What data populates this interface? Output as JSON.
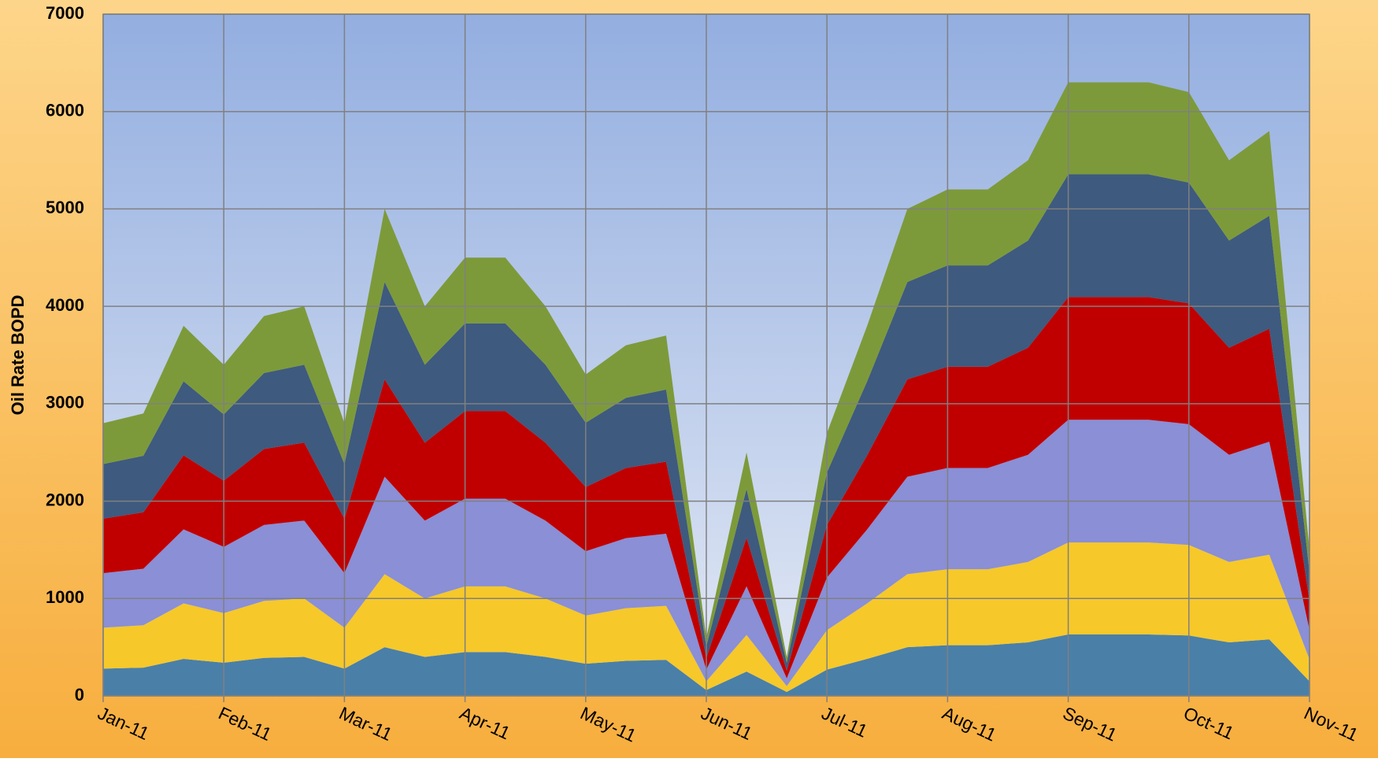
{
  "chart_data": {
    "type": "stacked_area",
    "y_label": "Oil Rate BOPD",
    "categories": [
      "Jan-11",
      null,
      null,
      "Feb-11",
      null,
      null,
      "Mar-11",
      null,
      null,
      "Apr-11",
      null,
      null,
      "May-11",
      null,
      null,
      "Jun-11",
      null,
      null,
      "Jul-11",
      null,
      null,
      "Aug-11",
      null,
      null,
      "Sep-11",
      null,
      null,
      "Oct-11",
      null,
      null,
      "Nov-11"
    ],
    "series": [
      {
        "color": "#4a7fa8",
        "values": [
          280,
          290,
          380,
          340,
          390,
          400,
          280,
          500,
          400,
          450,
          450,
          400,
          330,
          360,
          370,
          60,
          250,
          40,
          270,
          380,
          500,
          520,
          520,
          550,
          630,
          630,
          630,
          620,
          550,
          580,
          150
        ]
      },
      {
        "color": "#f6c82a",
        "values": [
          420,
          435,
          570,
          510,
          585,
          600,
          420,
          750,
          600,
          675,
          675,
          600,
          495,
          540,
          555,
          90,
          375,
          60,
          405,
          570,
          750,
          780,
          780,
          825,
          945,
          945,
          945,
          930,
          825,
          870,
          225
        ]
      },
      {
        "color": "#8a8fd6",
        "values": [
          560,
          580,
          760,
          680,
          780,
          800,
          560,
          1000,
          800,
          900,
          900,
          800,
          660,
          720,
          740,
          120,
          500,
          80,
          540,
          760,
          1000,
          1040,
          1040,
          1100,
          1260,
          1260,
          1260,
          1240,
          1100,
          1160,
          300
        ]
      },
      {
        "color": "#c00000",
        "values": [
          560,
          580,
          760,
          680,
          780,
          800,
          560,
          1000,
          800,
          900,
          900,
          800,
          660,
          720,
          740,
          120,
          500,
          80,
          540,
          760,
          1000,
          1040,
          1040,
          1100,
          1260,
          1260,
          1260,
          1240,
          1100,
          1160,
          300
        ]
      },
      {
        "color": "#3e5a7e",
        "values": [
          560,
          580,
          760,
          680,
          780,
          800,
          560,
          1000,
          800,
          900,
          900,
          800,
          660,
          720,
          740,
          120,
          500,
          80,
          540,
          760,
          1000,
          1040,
          1040,
          1100,
          1260,
          1260,
          1260,
          1240,
          1100,
          1160,
          300
        ]
      },
      {
        "color": "#7d9a3a",
        "values": [
          420,
          435,
          570,
          510,
          585,
          600,
          420,
          750,
          600,
          675,
          675,
          600,
          495,
          540,
          555,
          90,
          375,
          60,
          405,
          570,
          750,
          780,
          780,
          825,
          945,
          945,
          945,
          930,
          825,
          870,
          225
        ]
      }
    ],
    "ylim": [
      0,
      7000
    ],
    "yticks": [
      0,
      1000,
      2000,
      3000,
      4000,
      5000,
      6000,
      7000
    ],
    "grid": true
  }
}
